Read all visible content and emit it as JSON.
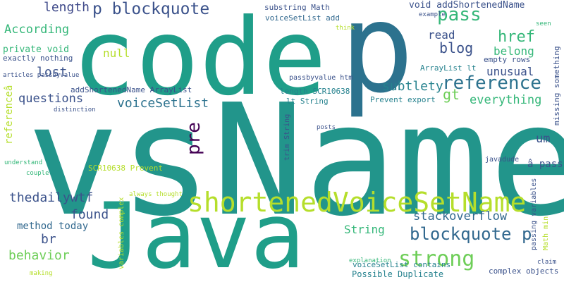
{
  "words": [
    {
      "text": "vsName",
      "color": "#22958b"
    },
    {
      "text": "code",
      "color": "#1f9e89"
    },
    {
      "text": "p",
      "color": "#2c728e"
    },
    {
      "text": "Java",
      "color": "#1f9e89"
    },
    {
      "text": "shortenedVoiceSetName",
      "color": "#b5de2b"
    },
    {
      "text": "p blockquote",
      "color": "#3b528b"
    },
    {
      "text": "pass",
      "color": "#35b779"
    },
    {
      "text": "reference",
      "color": "#2c728e"
    },
    {
      "text": "strong",
      "color": "#6ece58"
    },
    {
      "text": "blockquote p",
      "color": "#31688e"
    },
    {
      "text": "voiceSetList",
      "color": "#2c728e"
    },
    {
      "text": "pre",
      "color": "#440154"
    },
    {
      "text": "gt",
      "color": "#6ece58"
    },
    {
      "text": "everything",
      "color": "#35b779"
    },
    {
      "text": "According",
      "color": "#35b779"
    },
    {
      "text": "length",
      "color": "#3e4989"
    },
    {
      "text": "href",
      "color": "#35b779"
    },
    {
      "text": "blog",
      "color": "#3b528b"
    },
    {
      "text": "belong",
      "color": "#35b779"
    },
    {
      "text": "unusual",
      "color": "#3b528b"
    },
    {
      "text": "subtlety",
      "color": "#26828e"
    },
    {
      "text": "lost",
      "color": "#3b528b"
    },
    {
      "text": "null",
      "color": "#b5de2b"
    },
    {
      "text": "read",
      "color": "#3b528b"
    },
    {
      "text": "questions",
      "color": "#3b528b"
    },
    {
      "text": "thedailywtf",
      "color": "#3b528b"
    },
    {
      "text": "found",
      "color": "#3b528b"
    },
    {
      "text": "stackoverflow",
      "color": "#31688e"
    },
    {
      "text": "String",
      "color": "#35b779"
    },
    {
      "text": "br",
      "color": "#3b528b"
    },
    {
      "text": "behavior",
      "color": "#6ece58"
    },
    {
      "text": "method today",
      "color": "#31688e"
    },
    {
      "text": "um",
      "color": "#3b528b"
    },
    {
      "text": "private void",
      "color": "#35b779"
    },
    {
      "text": "exactly nothing",
      "color": "#3b528b"
    },
    {
      "text": "addShortenedName ArrayList",
      "color": "#3b528b"
    },
    {
      "text": "void addShortenedName",
      "color": "#3b528b"
    },
    {
      "text": "substring Math",
      "color": "#3b528b"
    },
    {
      "text": "voiceSetList add",
      "color": "#31688e"
    },
    {
      "text": "ArrayList lt",
      "color": "#26828e"
    },
    {
      "text": "empty rows",
      "color": "#3b528b"
    },
    {
      "text": "length SCR10638",
      "color": "#26828e"
    },
    {
      "text": "lt String",
      "color": "#26828e"
    },
    {
      "text": "Prevent export",
      "color": "#26828e"
    },
    {
      "text": "passbyvalue htm",
      "color": "#3b528b"
    },
    {
      "text": "SCR10638 Prevent",
      "color": "#b5de2b"
    },
    {
      "text": "Possible Duplicate",
      "color": "#26828e"
    },
    {
      "text": "voiceSetList contains",
      "color": "#26828e"
    },
    {
      "text": "complex objects",
      "color": "#3b528b"
    },
    {
      "text": "â pass",
      "color": "#3b528b"
    },
    {
      "text": "javadude",
      "color": "#3b528b"
    },
    {
      "text": "explanation",
      "color": "#35b779"
    },
    {
      "text": "understand",
      "color": "#35b779"
    },
    {
      "text": "couple",
      "color": "#35b779"
    },
    {
      "text": "articles passbyvalue",
      "color": "#3b528b"
    },
    {
      "text": "think",
      "color": "#b5de2b"
    },
    {
      "text": "example",
      "color": "#3b528b"
    },
    {
      "text": "seen",
      "color": "#35b779"
    },
    {
      "text": "distinction",
      "color": "#3b528b"
    },
    {
      "text": "posts",
      "color": "#3b528b"
    },
    {
      "text": "always thought",
      "color": "#b5de2b"
    },
    {
      "text": "making",
      "color": "#b5de2b"
    },
    {
      "text": "claim",
      "color": "#3b528b"
    },
    {
      "text": "referenceâ",
      "color": "#b5de2b"
    },
    {
      "text": "missing something",
      "color": "#3b528b"
    },
    {
      "text": "trim String",
      "color": "#3b528b"
    },
    {
      "text": "variables complex",
      "color": "#b5de2b"
    },
    {
      "text": "passing variables",
      "color": "#3b528b"
    },
    {
      "text": "Math min",
      "color": "#b5de2b"
    }
  ]
}
